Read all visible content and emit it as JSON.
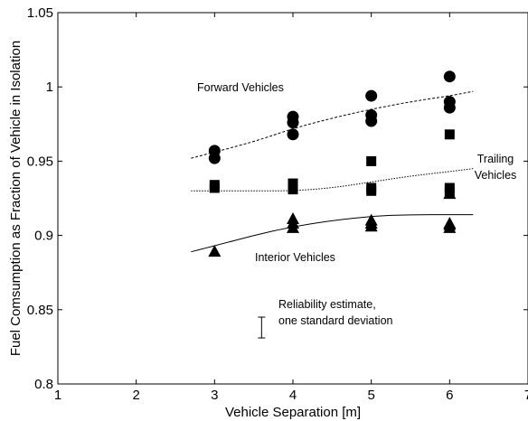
{
  "chart_data": {
    "type": "scatter",
    "title": "",
    "xlabel": "Vehicle Separation [m]",
    "ylabel": "Fuel Comsumption as Fraction of Vehicle in Isolation",
    "xlim": [
      1,
      7
    ],
    "ylim": [
      0.8,
      1.05
    ],
    "xticks": [
      1,
      2,
      3,
      4,
      5,
      6,
      7
    ],
    "xtick_labels": [
      "1",
      "2",
      "3",
      "4",
      "5",
      "6",
      "7"
    ],
    "yticks": [
      0.8,
      0.85,
      0.9,
      0.95,
      1.0,
      1.05
    ],
    "ytick_labels": [
      "0.8",
      "0.85",
      "0.9",
      "0.95",
      "1",
      "1.05"
    ],
    "grid": false,
    "series": [
      {
        "name": "Forward Vehicles",
        "marker": "circle",
        "points": [
          [
            3,
            0.957
          ],
          [
            3,
            0.952
          ],
          [
            4,
            0.98
          ],
          [
            4,
            0.976
          ],
          [
            4,
            0.968
          ],
          [
            5,
            0.994
          ],
          [
            5,
            0.981
          ],
          [
            5,
            0.977
          ],
          [
            6,
            1.007
          ],
          [
            6,
            0.99
          ],
          [
            6,
            0.986
          ]
        ],
        "fit": {
          "style": "dashed",
          "points": [
            [
              2.7,
              0.952
            ],
            [
              3.5,
              0.963
            ],
            [
              4.0,
              0.972
            ],
            [
              4.5,
              0.979
            ],
            [
              5.0,
              0.985
            ],
            [
              5.5,
              0.99
            ],
            [
              6.0,
              0.994
            ],
            [
              6.3,
              0.997
            ]
          ]
        }
      },
      {
        "name": "Trailing Vehicles",
        "marker": "square",
        "points": [
          [
            3,
            0.934
          ],
          [
            3,
            0.932
          ],
          [
            4,
            0.935
          ],
          [
            4,
            0.933
          ],
          [
            4,
            0.931
          ],
          [
            5,
            0.95
          ],
          [
            5,
            0.932
          ],
          [
            5,
            0.93
          ],
          [
            6,
            0.968
          ],
          [
            6,
            0.932
          ],
          [
            6,
            0.929
          ]
        ],
        "fit": {
          "style": "dotted",
          "points": [
            [
              2.7,
              0.93
            ],
            [
              3.0,
              0.93
            ],
            [
              3.5,
              0.93
            ],
            [
              4.0,
              0.93
            ],
            [
              4.5,
              0.932
            ],
            [
              5.0,
              0.936
            ],
            [
              5.5,
              0.94
            ],
            [
              6.0,
              0.943
            ],
            [
              6.3,
              0.945
            ]
          ]
        }
      },
      {
        "name": "Interior Vehicles",
        "marker": "triangle",
        "points": [
          [
            3,
            0.889
          ],
          [
            4,
            0.911
          ],
          [
            4,
            0.908
          ],
          [
            4,
            0.905
          ],
          [
            5,
            0.91
          ],
          [
            5,
            0.908
          ],
          [
            5,
            0.906
          ],
          [
            6,
            0.908
          ],
          [
            6,
            0.907
          ],
          [
            6,
            0.905
          ],
          [
            6,
            0.928
          ]
        ],
        "fit": {
          "style": "solid",
          "points": [
            [
              2.7,
              0.889
            ],
            [
              3.0,
              0.893
            ],
            [
              3.5,
              0.9
            ],
            [
              4.0,
              0.906
            ],
            [
              4.5,
              0.91
            ],
            [
              5.0,
              0.913
            ],
            [
              5.5,
              0.914
            ],
            [
              6.0,
              0.914
            ],
            [
              6.3,
              0.914
            ]
          ]
        }
      }
    ],
    "annotations": {
      "forward_label": "Forward Vehicles",
      "trailing_label_line1": "Trailing",
      "trailing_label_line2": "Vehicles",
      "interior_label": "Interior Vehicles",
      "reliability_line1": "Reliability estimate,",
      "reliability_line2": "one standard deviation",
      "reliability_bar": {
        "x": 3.6,
        "y_low": 0.831,
        "y_high": 0.845
      }
    }
  }
}
